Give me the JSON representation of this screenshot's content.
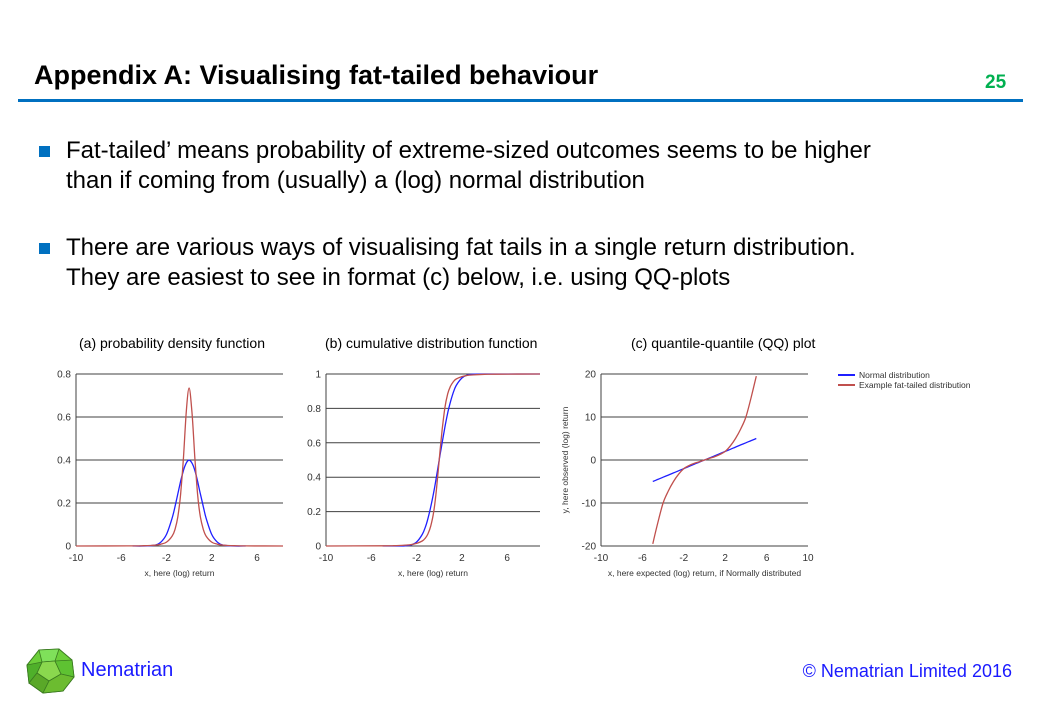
{
  "header": {
    "title": "Appendix A: Visualising fat-tailed behaviour",
    "page_number": "25"
  },
  "bullets": [
    {
      "line1": "Fat-tailed’ means probability of extreme-sized outcomes seems to be higher",
      "line2": "than if coming from (usually) a (log) normal distribution"
    },
    {
      "line1": "There are various ways of visualising fat tails in a single return distribution.",
      "line2": "They are easiest to see in format (c) below, i.e. using QQ-plots"
    }
  ],
  "footer": {
    "brand": "Nematrian",
    "copyright": "© Nematrian Limited 2016"
  },
  "colors": {
    "accent": "#0070c0",
    "page_number": "#00b050",
    "normal": "#1f1fff",
    "fat_tailed": "#c0504d",
    "footer_text": "#1a1aff"
  },
  "chart_data": [
    {
      "type": "line",
      "title": "(a) probability density function",
      "xlabel": "x, here (log) return",
      "ylabel": "",
      "xlim": [
        -10,
        8.3
      ],
      "ylim": [
        0,
        0.8
      ],
      "xticks": [
        "-10",
        "-6",
        "-2",
        "2",
        "6"
      ],
      "xtick_values": [
        -10,
        -6,
        -2,
        2,
        6
      ],
      "yticks": [
        "0",
        "0.2",
        "0.4",
        "0.6",
        "0.8"
      ],
      "ytick_values": [
        0,
        0.2,
        0.4,
        0.6,
        0.8
      ],
      "grid": "horizontal",
      "x": [
        -10,
        -5,
        -4,
        -3,
        -2.5,
        -2,
        -1.5,
        -1.25,
        -1,
        -0.75,
        -0.5,
        -0.25,
        0,
        0.25,
        0.5,
        0.75,
        1,
        1.25,
        1.5,
        2,
        2.5,
        3,
        4,
        5,
        8.3
      ],
      "series": [
        {
          "color": "#1f1fff",
          "values": [
            null,
            0,
            0.0001,
            0.0044,
            0.0175,
            0.054,
            0.1295,
            0.1826,
            0.242,
            0.3011,
            0.3521,
            0.3867,
            0.3989,
            0.3867,
            0.3521,
            0.3011,
            0.242,
            0.1826,
            0.1295,
            0.054,
            0.0175,
            0.0044,
            0.0001,
            0,
            null
          ]
        },
        {
          "color": "#c0504d",
          "values": [
            0,
            0.0006,
            0.0015,
            0.0043,
            0.0084,
            0.0183,
            0.046,
            0.0773,
            0.135,
            0.24,
            0.413,
            0.626,
            0.735,
            0.626,
            0.413,
            0.24,
            0.135,
            0.0773,
            0.046,
            0.0183,
            0.0084,
            0.0043,
            0.0015,
            0.0006,
            0
          ]
        }
      ]
    },
    {
      "type": "line",
      "title": "(b) cumulative  distribution function",
      "xlabel": "x, here (log) return",
      "ylabel": "",
      "xlim": [
        -10,
        8.9
      ],
      "ylim": [
        0,
        1
      ],
      "xticks": [
        "-10",
        "-6",
        "-2",
        "2",
        "6"
      ],
      "xtick_values": [
        -10,
        -6,
        -2,
        2,
        6
      ],
      "yticks": [
        "0",
        "0.2",
        "0.4",
        "0.6",
        "0.8",
        "1"
      ],
      "ytick_values": [
        0,
        0.2,
        0.4,
        0.6,
        0.8,
        1
      ],
      "grid": "horizontal",
      "x": [
        -10,
        -5,
        -4,
        -3,
        -2.5,
        -2,
        -1.5,
        -1.25,
        -1,
        -0.75,
        -0.5,
        -0.25,
        0,
        0.25,
        0.5,
        0.75,
        1,
        1.25,
        1.5,
        2,
        2.5,
        3,
        4,
        5,
        8.9
      ],
      "series": [
        {
          "color": "#1f1fff",
          "values": [
            null,
            0,
            0,
            0.0013,
            0.006,
            0.023,
            0.067,
            0.106,
            0.159,
            0.227,
            0.309,
            0.401,
            0.5,
            0.599,
            0.691,
            0.773,
            0.841,
            0.894,
            0.933,
            0.977,
            0.994,
            0.9987,
            1,
            1,
            1
          ]
        },
        {
          "color": "#c0504d",
          "values": [
            0,
            0.001,
            0.002,
            0.005,
            0.008,
            0.015,
            0.029,
            0.044,
            0.07,
            0.115,
            0.1955,
            0.326,
            0.5,
            0.674,
            0.8045,
            0.885,
            0.93,
            0.956,
            0.971,
            0.985,
            0.992,
            0.995,
            0.998,
            0.999,
            1
          ]
        }
      ]
    },
    {
      "type": "line",
      "title": "(c) quantile-quantile  (QQ) plot",
      "xlabel": "x, here expected (log) return, if Normally distributed",
      "ylabel": "y, here observed (log) return",
      "xlim": [
        -10,
        10
      ],
      "ylim": [
        -20,
        20
      ],
      "xticks": [
        "-10",
        "-6",
        "-2",
        "2",
        "6",
        "10"
      ],
      "xtick_values": [
        -10,
        -6,
        -2,
        2,
        6,
        10
      ],
      "yticks": [
        "-20",
        "-10",
        "0",
        "10",
        "20"
      ],
      "ytick_values": [
        -20,
        -10,
        0,
        10,
        20
      ],
      "grid": "horizontal",
      "legend_position": "right",
      "x": [
        -5,
        -4.5,
        -4,
        -3.5,
        -3,
        -2.5,
        -2,
        -1.5,
        -1,
        -0.5,
        0,
        0.5,
        1,
        1.5,
        2,
        2.5,
        3,
        3.5,
        4,
        4.5,
        5
      ],
      "series": [
        {
          "name": "Normal distribution",
          "color": "#1f1fff",
          "values": [
            -5,
            -4.5,
            -4,
            -3.5,
            -3,
            -2.5,
            -2,
            -1.5,
            -1,
            -0.5,
            0,
            0.5,
            1,
            1.5,
            2,
            2.5,
            3,
            3.5,
            4,
            4.5,
            5
          ]
        },
        {
          "name": "Example fat-tailed distribution",
          "color": "#c0504d",
          "values": [
            -19.5,
            -14.5,
            -10,
            -7.2,
            -5,
            -3.3,
            -2,
            -1.3,
            -0.8,
            -0.4,
            0,
            0.4,
            0.8,
            1.3,
            2,
            3.3,
            5,
            7.2,
            10,
            14.5,
            19.5
          ]
        }
      ]
    }
  ]
}
